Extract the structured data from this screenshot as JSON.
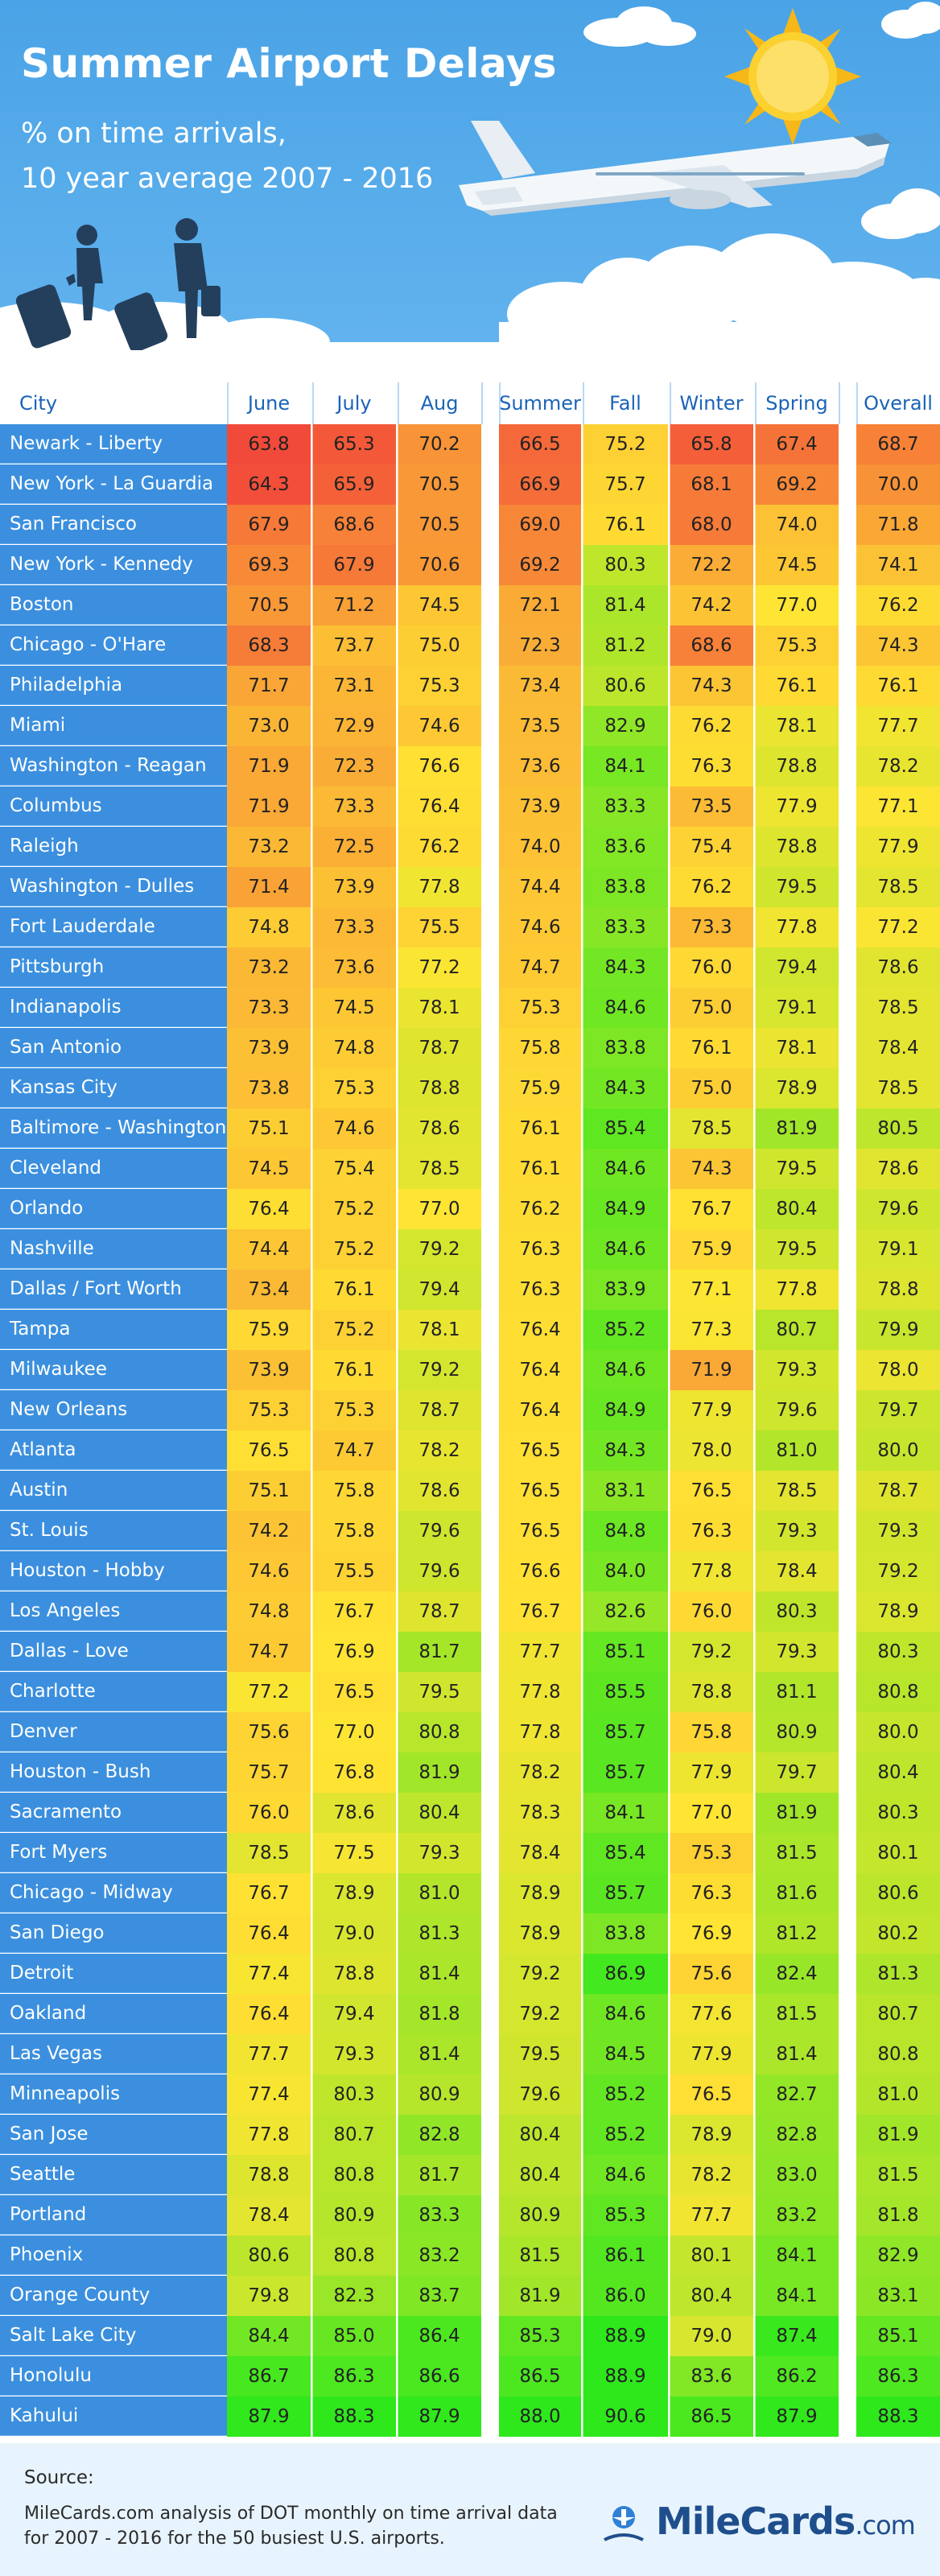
{
  "header": {
    "title": "Summer Airport Delays",
    "subtitle_line1": "% on time arrivals,",
    "subtitle_line2": "10 year average 2007 - 2016"
  },
  "icons": [
    "sun-icon",
    "airplane-icon",
    "cloud-icon",
    "travelers-icon",
    "plane-logo-icon"
  ],
  "colors": {
    "header_bg": "#4aa3e6",
    "city_bg": "#3b8fde",
    "header_text": "#1b63b8",
    "scale_low": "#f24a3a",
    "scale_mid": "#ffe533",
    "scale_high": "#2ee81c"
  },
  "table": {
    "city_header": "City",
    "columns": [
      "June",
      "July",
      "Aug",
      "Summer",
      "Fall",
      "Winter",
      "Spring",
      "Overall"
    ]
  },
  "chart_data": {
    "type": "table",
    "title": "Summer Airport Delays",
    "columns": [
      "June",
      "July",
      "Aug",
      "Summer",
      "Fall",
      "Winter",
      "Spring",
      "Overall"
    ],
    "rows": [
      {
        "city": "Newark - Liberty",
        "values": [
          63.8,
          65.3,
          70.2,
          66.5,
          75.2,
          65.8,
          67.4,
          68.7
        ]
      },
      {
        "city": "New York - La Guardia",
        "values": [
          64.3,
          65.9,
          70.5,
          66.9,
          75.7,
          68.1,
          69.2,
          70.0
        ]
      },
      {
        "city": "San Francisco",
        "values": [
          67.9,
          68.6,
          70.5,
          69.0,
          76.1,
          68.0,
          74.0,
          71.8
        ]
      },
      {
        "city": "New York - Kennedy",
        "values": [
          69.3,
          67.9,
          70.6,
          69.2,
          80.3,
          72.2,
          74.5,
          74.1
        ]
      },
      {
        "city": "Boston",
        "values": [
          70.5,
          71.2,
          74.5,
          72.1,
          81.4,
          74.2,
          77.0,
          76.2
        ]
      },
      {
        "city": "Chicago - O'Hare",
        "values": [
          68.3,
          73.7,
          75.0,
          72.3,
          81.2,
          68.6,
          75.3,
          74.3
        ]
      },
      {
        "city": "Philadelphia",
        "values": [
          71.7,
          73.1,
          75.3,
          73.4,
          80.6,
          74.3,
          76.1,
          76.1
        ]
      },
      {
        "city": "Miami",
        "values": [
          73.0,
          72.9,
          74.6,
          73.5,
          82.9,
          76.2,
          78.1,
          77.7
        ]
      },
      {
        "city": "Washington - Reagan",
        "values": [
          71.9,
          72.3,
          76.6,
          73.6,
          84.1,
          76.3,
          78.8,
          78.2
        ]
      },
      {
        "city": "Columbus",
        "values": [
          71.9,
          73.3,
          76.4,
          73.9,
          83.3,
          73.5,
          77.9,
          77.1
        ]
      },
      {
        "city": "Raleigh",
        "values": [
          73.2,
          72.5,
          76.2,
          74.0,
          83.6,
          75.4,
          78.8,
          77.9
        ]
      },
      {
        "city": "Washington - Dulles",
        "values": [
          71.4,
          73.9,
          77.8,
          74.4,
          83.8,
          76.2,
          79.5,
          78.5
        ]
      },
      {
        "city": "Fort Lauderdale",
        "values": [
          74.8,
          73.3,
          75.5,
          74.6,
          83.3,
          73.3,
          77.8,
          77.2
        ]
      },
      {
        "city": "Pittsburgh",
        "values": [
          73.2,
          73.6,
          77.2,
          74.7,
          84.3,
          76.0,
          79.4,
          78.6
        ]
      },
      {
        "city": "Indianapolis",
        "values": [
          73.3,
          74.5,
          78.1,
          75.3,
          84.6,
          75.0,
          79.1,
          78.5
        ]
      },
      {
        "city": "San Antonio",
        "values": [
          73.9,
          74.8,
          78.7,
          75.8,
          83.8,
          76.1,
          78.1,
          78.4
        ]
      },
      {
        "city": "Kansas City",
        "values": [
          73.8,
          75.3,
          78.8,
          75.9,
          84.3,
          75.0,
          78.9,
          78.5
        ]
      },
      {
        "city": "Baltimore - Washington",
        "values": [
          75.1,
          74.6,
          78.6,
          76.1,
          85.4,
          78.5,
          81.9,
          80.5
        ]
      },
      {
        "city": "Cleveland",
        "values": [
          74.5,
          75.4,
          78.5,
          76.1,
          84.6,
          74.3,
          79.5,
          78.6
        ]
      },
      {
        "city": "Orlando",
        "values": [
          76.4,
          75.2,
          77.0,
          76.2,
          84.9,
          76.7,
          80.4,
          79.6
        ]
      },
      {
        "city": "Nashville",
        "values": [
          74.4,
          75.2,
          79.2,
          76.3,
          84.6,
          75.9,
          79.5,
          79.1
        ]
      },
      {
        "city": "Dallas / Fort Worth",
        "values": [
          73.4,
          76.1,
          79.4,
          76.3,
          83.9,
          77.1,
          77.8,
          78.8
        ]
      },
      {
        "city": "Tampa",
        "values": [
          75.9,
          75.2,
          78.1,
          76.4,
          85.2,
          77.3,
          80.7,
          79.9
        ]
      },
      {
        "city": "Milwaukee",
        "values": [
          73.9,
          76.1,
          79.2,
          76.4,
          84.6,
          71.9,
          79.3,
          78.0
        ]
      },
      {
        "city": "New Orleans",
        "values": [
          75.3,
          75.3,
          78.7,
          76.4,
          84.9,
          77.9,
          79.6,
          79.7
        ]
      },
      {
        "city": "Atlanta",
        "values": [
          76.5,
          74.7,
          78.2,
          76.5,
          84.3,
          78.0,
          81.0,
          80.0
        ]
      },
      {
        "city": "Austin",
        "values": [
          75.1,
          75.8,
          78.6,
          76.5,
          83.1,
          76.5,
          78.5,
          78.7
        ]
      },
      {
        "city": "St. Louis",
        "values": [
          74.2,
          75.8,
          79.6,
          76.5,
          84.8,
          76.3,
          79.3,
          79.3
        ]
      },
      {
        "city": "Houston - Hobby",
        "values": [
          74.6,
          75.5,
          79.6,
          76.6,
          84.0,
          77.8,
          78.4,
          79.2
        ]
      },
      {
        "city": "Los Angeles",
        "values": [
          74.8,
          76.7,
          78.7,
          76.7,
          82.6,
          76.0,
          80.3,
          78.9
        ]
      },
      {
        "city": "Dallas - Love",
        "values": [
          74.7,
          76.9,
          81.7,
          77.7,
          85.1,
          79.2,
          79.3,
          80.3
        ]
      },
      {
        "city": "Charlotte",
        "values": [
          77.2,
          76.5,
          79.5,
          77.8,
          85.5,
          78.8,
          81.1,
          80.8
        ]
      },
      {
        "city": "Denver",
        "values": [
          75.6,
          77.0,
          80.8,
          77.8,
          85.7,
          75.8,
          80.9,
          80.0
        ]
      },
      {
        "city": "Houston - Bush",
        "values": [
          75.7,
          76.8,
          81.9,
          78.2,
          85.7,
          77.9,
          79.7,
          80.4
        ]
      },
      {
        "city": "Sacramento",
        "values": [
          76.0,
          78.6,
          80.4,
          78.3,
          84.1,
          77.0,
          81.9,
          80.3
        ]
      },
      {
        "city": "Fort Myers",
        "values": [
          78.5,
          77.5,
          79.3,
          78.4,
          85.4,
          75.3,
          81.5,
          80.1
        ]
      },
      {
        "city": "Chicago - Midway",
        "values": [
          76.7,
          78.9,
          81.0,
          78.9,
          85.7,
          76.3,
          81.6,
          80.6
        ]
      },
      {
        "city": "San Diego",
        "values": [
          76.4,
          79.0,
          81.3,
          78.9,
          83.8,
          76.9,
          81.2,
          80.2
        ]
      },
      {
        "city": "Detroit",
        "values": [
          77.4,
          78.8,
          81.4,
          79.2,
          86.9,
          75.6,
          82.4,
          81.3
        ]
      },
      {
        "city": "Oakland",
        "values": [
          76.4,
          79.4,
          81.8,
          79.2,
          84.6,
          77.6,
          81.5,
          80.7
        ]
      },
      {
        "city": "Las Vegas",
        "values": [
          77.7,
          79.3,
          81.4,
          79.5,
          84.5,
          77.9,
          81.4,
          80.8
        ]
      },
      {
        "city": "Minneapolis",
        "values": [
          77.4,
          80.3,
          80.9,
          79.6,
          85.2,
          76.5,
          82.7,
          81.0
        ]
      },
      {
        "city": "San Jose",
        "values": [
          77.8,
          80.7,
          82.8,
          80.4,
          85.2,
          78.9,
          82.8,
          81.9
        ]
      },
      {
        "city": "Seattle",
        "values": [
          78.8,
          80.8,
          81.7,
          80.4,
          84.6,
          78.2,
          83.0,
          81.5
        ]
      },
      {
        "city": "Portland",
        "values": [
          78.4,
          80.9,
          83.3,
          80.9,
          85.3,
          77.7,
          83.2,
          81.8
        ]
      },
      {
        "city": "Phoenix",
        "values": [
          80.6,
          80.8,
          83.2,
          81.5,
          86.1,
          80.1,
          84.1,
          82.9
        ]
      },
      {
        "city": "Orange County",
        "values": [
          79.8,
          82.3,
          83.7,
          81.9,
          86.0,
          80.4,
          84.1,
          83.1
        ]
      },
      {
        "city": "Salt Lake City",
        "values": [
          84.4,
          85.0,
          86.4,
          85.3,
          88.9,
          79.0,
          87.4,
          85.1
        ]
      },
      {
        "city": "Honolulu",
        "values": [
          86.7,
          86.3,
          86.6,
          86.5,
          88.9,
          83.6,
          86.2,
          86.3
        ]
      },
      {
        "city": "Kahului",
        "values": [
          87.9,
          88.3,
          87.9,
          88.0,
          90.6,
          86.5,
          87.9,
          88.3
        ]
      }
    ]
  },
  "footer": {
    "source_label": "Source:",
    "source_line1": "MileCards.com analysis of DOT monthly on time arrival data",
    "source_line2": "for 2007 - 2016 for the 50 busiest U.S. airports.",
    "logo_main": "MileCards",
    "logo_domain": ".com"
  }
}
